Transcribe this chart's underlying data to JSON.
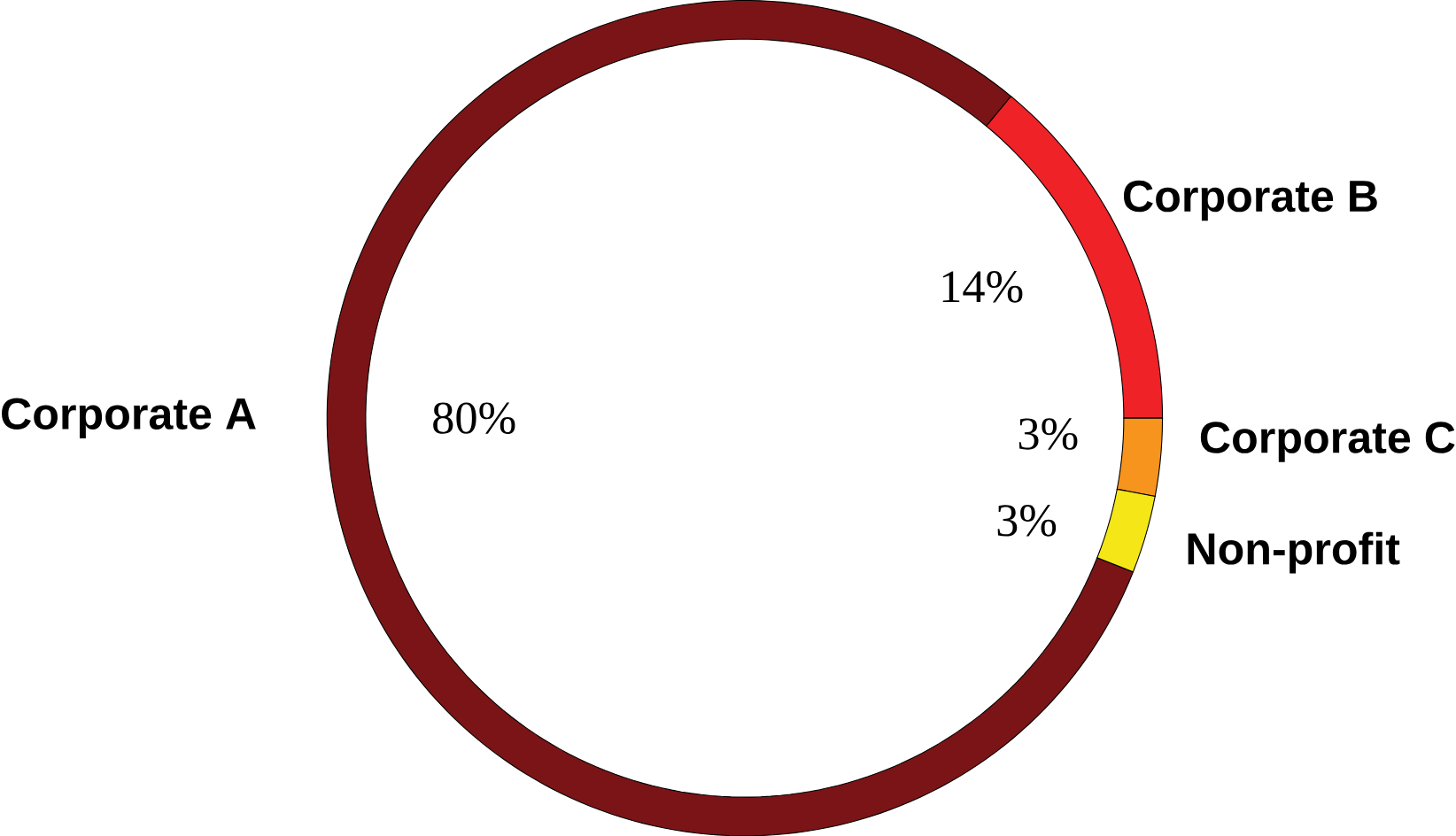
{
  "chart_data": {
    "type": "donut",
    "categories": [
      "Corporate A",
      "Corporate B",
      "Corporate C",
      "Non-profit"
    ],
    "values": [
      80,
      14,
      3,
      3
    ],
    "value_labels": [
      "80%",
      "14%",
      "3%",
      "3%"
    ],
    "colors": [
      "#7b1416",
      "#ee2227",
      "#f7941d",
      "#f5e617"
    ]
  }
}
